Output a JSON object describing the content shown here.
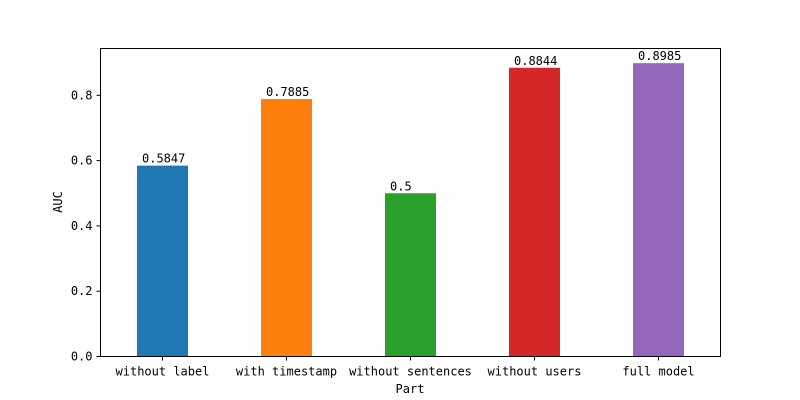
{
  "chart_data": {
    "type": "bar",
    "categories": [
      "without label",
      "with timestamp",
      "without sentences",
      "without users",
      "full model"
    ],
    "values": [
      0.5847,
      0.7885,
      0.5,
      0.8844,
      0.8985
    ],
    "data_labels": [
      "0.5847",
      "0.7885",
      "0.5",
      "0.8844",
      "0.8985"
    ],
    "colors": [
      "#1f77b4",
      "#ff7f0e",
      "#2ca02c",
      "#d62728",
      "#9467bd"
    ],
    "title": "",
    "xlabel": "Part",
    "ylabel": "AUC",
    "ylim": [
      0,
      0.9434
    ],
    "yticks": [
      0.0,
      0.2,
      0.4,
      0.6,
      0.8
    ],
    "ytick_labels": [
      "0.0",
      "0.2",
      "0.4",
      "0.6",
      "0.8"
    ],
    "grid": false,
    "legend": "none"
  }
}
